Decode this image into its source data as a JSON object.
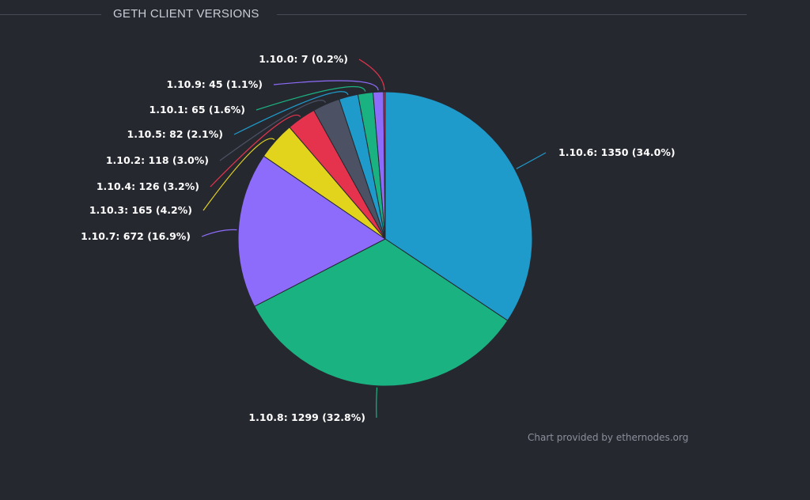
{
  "header": {
    "title": "GETH CLIENT VERSIONS"
  },
  "credit": "Chart provided by ethernodes.org",
  "chart_data": {
    "type": "pie",
    "title": "GETH CLIENT VERSIONS",
    "slices": [
      {
        "label": "1.10.6",
        "value": 1350,
        "percent": "34.0%",
        "color": "#1e9bcb"
      },
      {
        "label": "1.10.8",
        "value": 1299,
        "percent": "32.8%",
        "color": "#1bb281"
      },
      {
        "label": "1.10.7",
        "value": 672,
        "percent": "16.9%",
        "color": "#8e6cfb"
      },
      {
        "label": "1.10.3",
        "value": 165,
        "percent": "4.2%",
        "color": "#e2d31d"
      },
      {
        "label": "1.10.4",
        "value": 126,
        "percent": "3.2%",
        "color": "#e5334d"
      },
      {
        "label": "1.10.2",
        "value": 118,
        "percent": "3.0%",
        "color": "#4c5263"
      },
      {
        "label": "1.10.5",
        "value": 82,
        "percent": "2.1%",
        "color": "#1e9bcb"
      },
      {
        "label": "1.10.1",
        "value": 65,
        "percent": "1.6%",
        "color": "#1bb281"
      },
      {
        "label": "1.10.9",
        "value": 45,
        "percent": "1.1%",
        "color": "#8e6cfb"
      },
      {
        "label": "1.10.0",
        "value": 7,
        "percent": "0.2%",
        "color": "#e5334d"
      }
    ]
  },
  "colors": {
    "background": "#262830",
    "label_text": "#ffffff",
    "slice_border": "#262830"
  }
}
